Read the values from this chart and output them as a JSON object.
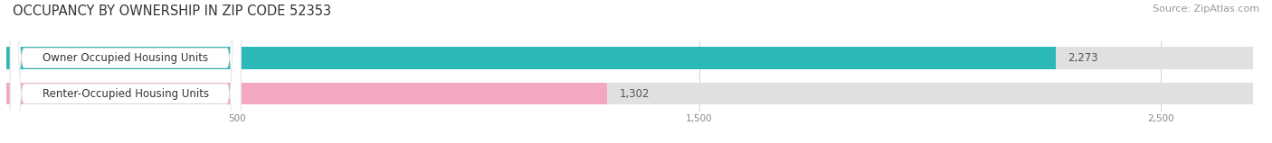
{
  "title": "OCCUPANCY BY OWNERSHIP IN ZIP CODE 52353",
  "source": "Source: ZipAtlas.com",
  "categories": [
    "Owner Occupied Housing Units",
    "Renter-Occupied Housing Units"
  ],
  "values": [
    2273,
    1302
  ],
  "bar_colors": [
    "#2ab8b8",
    "#f4a8c0"
  ],
  "bar_bg_color": "#e0e0e0",
  "xlim": [
    0,
    2700
  ],
  "xticks": [
    500,
    1500,
    2500
  ],
  "xtick_labels": [
    "500",
    "1,500",
    "2,500"
  ],
  "value_labels": [
    "2,273",
    "1,302"
  ],
  "title_fontsize": 10.5,
  "source_fontsize": 8,
  "bar_label_fontsize": 8.5,
  "value_fontsize": 8.5,
  "background_color": "#ffffff",
  "figsize": [
    14.06,
    1.59
  ],
  "dpi": 100
}
